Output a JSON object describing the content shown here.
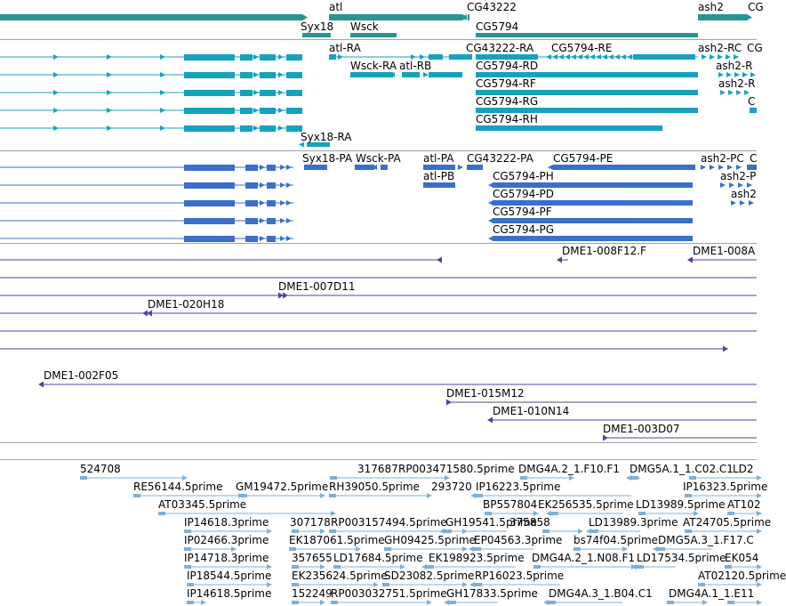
{
  "colors": {
    "gene": "#2a9494",
    "transcript": "#17a2bc",
    "protein": "#3a6fcc",
    "clone": "#5b3e9c",
    "est": "#7fb0d4",
    "separator": "#9aa6ae"
  },
  "tracks": {
    "genes": [
      "atl",
      "CG43222",
      "ash2",
      "Syx18",
      "Wsck",
      "CG5794"
    ],
    "transcripts": [
      "atl-RA",
      "CG43222-RA",
      "CG5794-RE",
      "ash2-RC",
      "Wsck-RA",
      "atl-RB",
      "CG5794-RD",
      "CG5794-RF",
      "CG5794-RG",
      "CG5794-RH",
      "Syx18-RA"
    ],
    "proteins": [
      "Syx18-PA",
      "Wsck-PA",
      "atl-PA",
      "CG43222-PA",
      "CG5794-PE",
      "ash2-PC",
      "atl-PB",
      "CG5794-PH",
      "CG5794-PD",
      "CG5794-PF",
      "CG5794-PG"
    ],
    "clones": [
      "DME1-008F12.F",
      "DME1-007D11",
      "DME1-020H18",
      "DME1-002F05",
      "DME1-015M12",
      "DME1-010N14",
      "DME1-003D07"
    ],
    "ests": [
      "524708",
      "317687",
      "RP003471580.5prime",
      "DMG4A.2_1.F10.F1",
      "DMG5A.1_1.C02.C1",
      "RE56144.5prime",
      "GM19472.5prime",
      "RH39050.5prime",
      "293720",
      "IP16223.5prime",
      "IP16323.5prime",
      "AT03345.5prime",
      "BP557804",
      "EK256535.5prime",
      "LD13989.5prime",
      "IP14618.3prime",
      "307178",
      "RP003157494.5prime",
      "GH19541.5prime",
      "375858",
      "LD13989.3prime",
      "AT24705.5prime",
      "IP02466.3prime",
      "EK187061.5prime",
      "GH09425.5prime",
      "EP04563.3prime",
      "bs74f04.5prime",
      "DMG5A.3_1.F17.C",
      "IP14718.3prime",
      "357655",
      "LD17684.5prime",
      "EK198923.5prime",
      "DMG4A.2_1.N08.F1",
      "LD17534.5prime",
      "IP18544.5prime",
      "EK235624.5prime",
      "SD23082.5prime",
      "RP16023.5prime",
      "AT02120.5prime",
      "IP14618.5prime",
      "152249",
      "RP003032751.5prime",
      "GH17833.5prime",
      "DMG4A.3_1.B04.C1",
      "DMG4A.1_1.E11"
    ]
  },
  "clipped_labels": [
    "CG",
    "ash2-R",
    "C",
    "ash2-P",
    "ash2",
    "DME1-008A",
    "LD2",
    "AT102",
    "EK054"
  ]
}
